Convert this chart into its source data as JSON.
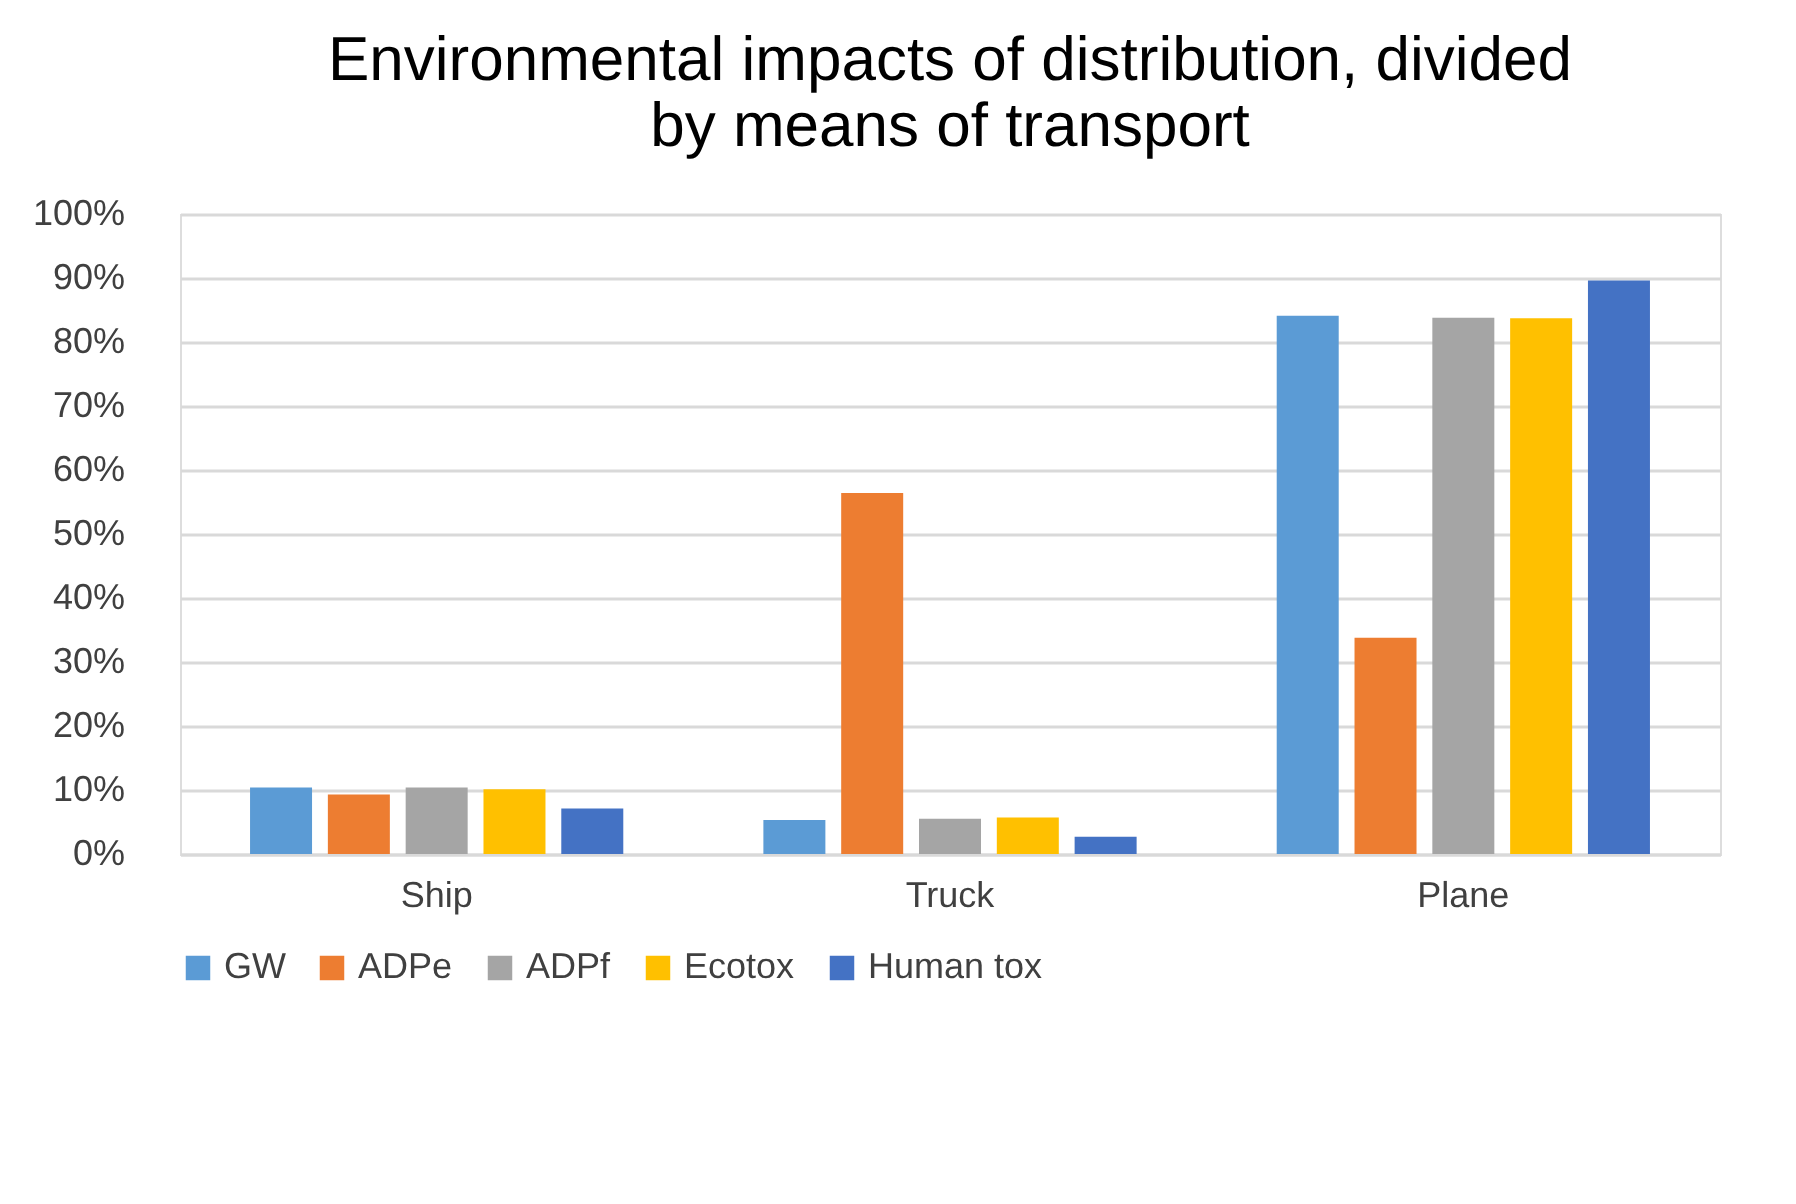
{
  "chart_data": {
    "type": "bar",
    "title": [
      "Environmental impacts of distribution, divided",
      "by means of transport"
    ],
    "categories": [
      "Ship",
      "Truck",
      "Plane"
    ],
    "series": [
      {
        "name": "GW",
        "color": "#5b9bd5",
        "values": [
          10.4,
          5.3,
          84.1
        ]
      },
      {
        "name": "ADPe",
        "color": "#ed7d31",
        "values": [
          9.3,
          56.4,
          33.8
        ]
      },
      {
        "name": "ADPf",
        "color": "#a5a5a5",
        "values": [
          10.4,
          5.5,
          83.8
        ]
      },
      {
        "name": "Ecotox",
        "color": "#ffc000",
        "values": [
          10.1,
          5.7,
          83.7
        ]
      },
      {
        "name": "Human tox",
        "color": "#4472c4",
        "values": [
          7.1,
          2.7,
          89.6
        ]
      }
    ],
    "ylim": [
      0,
      100
    ],
    "yticks": [
      {
        "value": 0,
        "label": "0%"
      },
      {
        "value": 10,
        "label": "10%"
      },
      {
        "value": 20,
        "label": "20%"
      },
      {
        "value": 30,
        "label": "30%"
      },
      {
        "value": 40,
        "label": "40%"
      },
      {
        "value": 50,
        "label": "50%"
      },
      {
        "value": 60,
        "label": "60%"
      },
      {
        "value": 70,
        "label": "70%"
      },
      {
        "value": 80,
        "label": "80%"
      },
      {
        "value": 90,
        "label": "90%"
      },
      {
        "value": 100,
        "label": "100%"
      }
    ],
    "grid": "y",
    "legend": "bottom"
  }
}
